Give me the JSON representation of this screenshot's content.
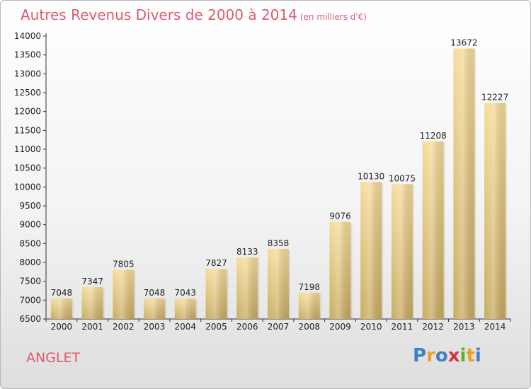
{
  "title": "Autres Revenus Divers de 2000 à 2014",
  "subtitle": "(en milliers d'€)",
  "city": "ANGLET",
  "logo": {
    "letters": [
      "P",
      "r",
      "o",
      "x",
      "i",
      "t",
      "i"
    ],
    "colors": [
      "#3f7fc8",
      "#f0a020",
      "#3f7fc8",
      "#e03040",
      "#60b030",
      "#f0a020",
      "#3f7fc8"
    ]
  },
  "chart_data": {
    "type": "bar",
    "categories": [
      "2000",
      "2001",
      "2002",
      "2003",
      "2004",
      "2005",
      "2006",
      "2007",
      "2008",
      "2009",
      "2010",
      "2011",
      "2012",
      "2013",
      "2014"
    ],
    "values": [
      7048,
      7347,
      7805,
      7048,
      7043,
      7827,
      8133,
      8358,
      7198,
      9076,
      10130,
      10075,
      11208,
      13672,
      12227
    ],
    "ylim": [
      6500,
      14000
    ],
    "yticks": [
      6500,
      7000,
      7500,
      8000,
      8500,
      9000,
      9500,
      10000,
      10500,
      11000,
      11500,
      12000,
      12500,
      13000,
      13500,
      14000
    ],
    "grid": false,
    "bar_color": "#e8c878"
  }
}
